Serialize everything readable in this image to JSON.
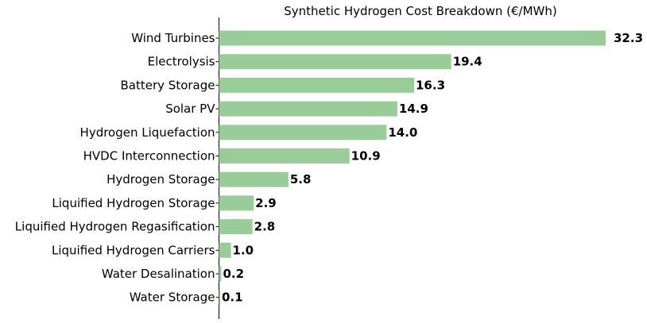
{
  "chart_data": {
    "type": "bar",
    "orientation": "horizontal",
    "title": "Synthetic Hydrogen Cost Breakdown (€/MWh)",
    "xlabel": "",
    "ylabel": "",
    "categories": [
      "Wind Turbines",
      "Electrolysis",
      "Battery Storage",
      "Solar PV",
      "Hydrogen Liquefaction",
      "HVDC Interconnection",
      "Hydrogen Storage",
      "Liquified Hydrogen Storage",
      "Liquified Hydrogen Regasification",
      "Liquified Hydrogen Carriers",
      "Water Desalination",
      "Water Storage"
    ],
    "values": [
      32.3,
      19.4,
      16.3,
      14.9,
      14.0,
      10.9,
      5.8,
      2.9,
      2.8,
      1.0,
      0.2,
      0.1
    ],
    "value_labels": [
      "32.3",
      "19.4",
      "16.3",
      "14.9",
      "14.0",
      "10.9",
      "5.8",
      "2.9",
      "2.8",
      "1.0",
      "0.2",
      "0.1"
    ],
    "xlim": [
      0,
      32.3
    ],
    "grid": false,
    "legend": "none",
    "bar_color": "#99cc99"
  }
}
